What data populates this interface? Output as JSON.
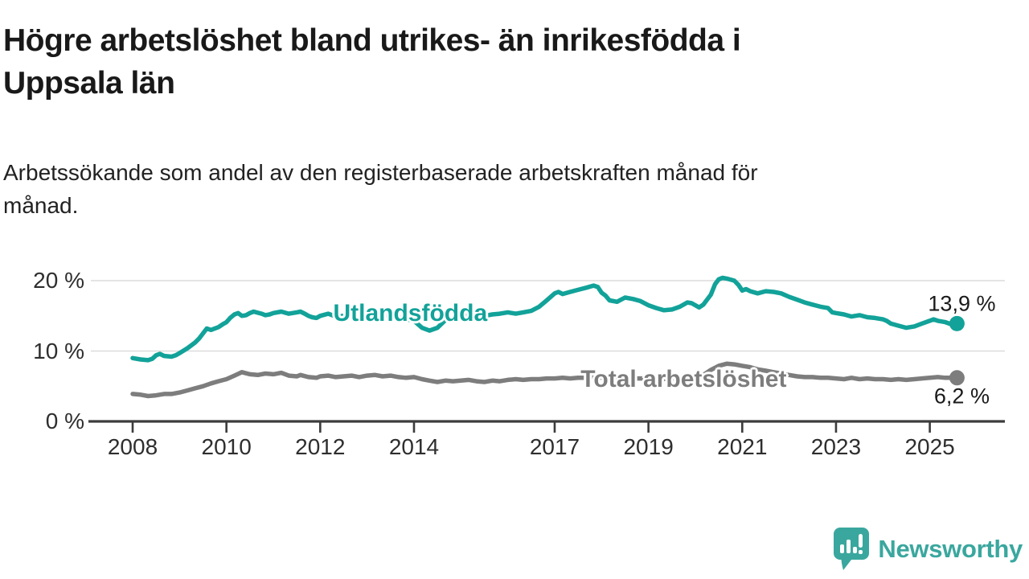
{
  "header": {
    "title_lines": [
      "Högre arbetslöshet bland utrikes- än inrikesfödda i",
      "Uppsala län"
    ],
    "subtitle_lines": [
      "Arbetssökande som andel av den registerbaserade arbetskraften månad för",
      "månad."
    ]
  },
  "chart_data": {
    "type": "line",
    "title": "Högre arbetslöshet bland utrikes- än inrikesfödda i Uppsala län",
    "subtitle": "Arbetssökande som andel av den registerbaserade arbetskraften månad för månad.",
    "xlabel": "",
    "ylabel": "",
    "grid": true,
    "x_range": [
      2008,
      2025.6
    ],
    "ylim": [
      0,
      22
    ],
    "y_ticks": [
      {
        "value": 0,
        "label": "0 %"
      },
      {
        "value": 10,
        "label": "10 %"
      },
      {
        "value": 20,
        "label": "20 %"
      }
    ],
    "x_ticks": [
      {
        "value": 2008,
        "label": "2008"
      },
      {
        "value": 2010,
        "label": "2010"
      },
      {
        "value": 2012,
        "label": "2012"
      },
      {
        "value": 2014,
        "label": "2014"
      },
      {
        "value": 2017,
        "label": "2017"
      },
      {
        "value": 2019,
        "label": "2019"
      },
      {
        "value": 2021,
        "label": "2021"
      },
      {
        "value": 2023,
        "label": "2023"
      },
      {
        "value": 2025,
        "label": "2025"
      }
    ],
    "series": [
      {
        "name": "Utlandsfödda",
        "color": "#12a299",
        "end_value": 13.9,
        "end_label": "13,9 %",
        "end_label_position": "above",
        "label_anchor": {
          "year": 2013.92,
          "pct": 15.3
        },
        "points": [
          [
            2008.0,
            9.0
          ],
          [
            2008.17,
            8.8
          ],
          [
            2008.33,
            8.7
          ],
          [
            2008.42,
            8.9
          ],
          [
            2008.5,
            9.4
          ],
          [
            2008.58,
            9.6
          ],
          [
            2008.67,
            9.3
          ],
          [
            2008.83,
            9.2
          ],
          [
            2008.92,
            9.4
          ],
          [
            2009.0,
            9.7
          ],
          [
            2009.17,
            10.4
          ],
          [
            2009.33,
            11.2
          ],
          [
            2009.42,
            11.8
          ],
          [
            2009.5,
            12.5
          ],
          [
            2009.58,
            13.2
          ],
          [
            2009.67,
            13.0
          ],
          [
            2009.83,
            13.4
          ],
          [
            2009.92,
            13.8
          ],
          [
            2010.0,
            14.1
          ],
          [
            2010.08,
            14.7
          ],
          [
            2010.17,
            15.2
          ],
          [
            2010.25,
            15.4
          ],
          [
            2010.33,
            15.0
          ],
          [
            2010.42,
            15.1
          ],
          [
            2010.5,
            15.4
          ],
          [
            2010.58,
            15.6
          ],
          [
            2010.75,
            15.3
          ],
          [
            2010.83,
            15.1
          ],
          [
            2010.92,
            15.2
          ],
          [
            2011.0,
            15.4
          ],
          [
            2011.17,
            15.6
          ],
          [
            2011.33,
            15.3
          ],
          [
            2011.5,
            15.5
          ],
          [
            2011.58,
            15.6
          ],
          [
            2011.67,
            15.3
          ],
          [
            2011.75,
            15.0
          ],
          [
            2011.83,
            14.8
          ],
          [
            2011.92,
            14.7
          ],
          [
            2012.0,
            15.0
          ],
          [
            2012.17,
            15.3
          ],
          [
            2012.33,
            14.9
          ],
          [
            2012.5,
            15.0
          ],
          [
            2012.67,
            15.3
          ],
          [
            2012.83,
            15.0
          ],
          [
            2013.0,
            15.2
          ],
          [
            2013.17,
            15.3
          ],
          [
            2013.33,
            15.0
          ],
          [
            2013.5,
            15.2
          ],
          [
            2013.67,
            14.8
          ],
          [
            2013.83,
            14.5
          ],
          [
            2014.0,
            14.3
          ],
          [
            2014.17,
            13.3
          ],
          [
            2014.33,
            12.9
          ],
          [
            2014.5,
            13.3
          ],
          [
            2014.67,
            14.4
          ],
          [
            2014.83,
            14.7
          ],
          [
            2015.0,
            14.9
          ],
          [
            2015.17,
            15.1
          ],
          [
            2015.33,
            14.9
          ],
          [
            2015.5,
            15.0
          ],
          [
            2015.67,
            15.2
          ],
          [
            2015.83,
            15.3
          ],
          [
            2016.0,
            15.5
          ],
          [
            2016.17,
            15.3
          ],
          [
            2016.33,
            15.5
          ],
          [
            2016.5,
            15.7
          ],
          [
            2016.67,
            16.3
          ],
          [
            2016.83,
            17.2
          ],
          [
            2017.0,
            18.2
          ],
          [
            2017.08,
            18.4
          ],
          [
            2017.17,
            18.1
          ],
          [
            2017.33,
            18.4
          ],
          [
            2017.5,
            18.7
          ],
          [
            2017.67,
            19.0
          ],
          [
            2017.83,
            19.3
          ],
          [
            2017.92,
            19.1
          ],
          [
            2018.0,
            18.3
          ],
          [
            2018.08,
            17.9
          ],
          [
            2018.17,
            17.2
          ],
          [
            2018.33,
            17.0
          ],
          [
            2018.5,
            17.6
          ],
          [
            2018.67,
            17.4
          ],
          [
            2018.83,
            17.1
          ],
          [
            2019.0,
            16.5
          ],
          [
            2019.17,
            16.1
          ],
          [
            2019.33,
            15.8
          ],
          [
            2019.5,
            15.9
          ],
          [
            2019.67,
            16.3
          ],
          [
            2019.83,
            16.9
          ],
          [
            2019.92,
            16.8
          ],
          [
            2020.0,
            16.5
          ],
          [
            2020.08,
            16.2
          ],
          [
            2020.17,
            16.6
          ],
          [
            2020.33,
            18.0
          ],
          [
            2020.42,
            19.5
          ],
          [
            2020.5,
            20.2
          ],
          [
            2020.58,
            20.4
          ],
          [
            2020.67,
            20.3
          ],
          [
            2020.83,
            20.0
          ],
          [
            2020.92,
            19.4
          ],
          [
            2021.0,
            18.6
          ],
          [
            2021.08,
            18.8
          ],
          [
            2021.17,
            18.5
          ],
          [
            2021.33,
            18.2
          ],
          [
            2021.5,
            18.5
          ],
          [
            2021.67,
            18.4
          ],
          [
            2021.83,
            18.2
          ],
          [
            2022.0,
            17.7
          ],
          [
            2022.17,
            17.3
          ],
          [
            2022.33,
            16.9
          ],
          [
            2022.5,
            16.6
          ],
          [
            2022.67,
            16.3
          ],
          [
            2022.83,
            16.1
          ],
          [
            2022.92,
            15.5
          ],
          [
            2023.0,
            15.4
          ],
          [
            2023.17,
            15.2
          ],
          [
            2023.33,
            14.9
          ],
          [
            2023.5,
            15.1
          ],
          [
            2023.67,
            14.8
          ],
          [
            2023.83,
            14.7
          ],
          [
            2024.0,
            14.5
          ],
          [
            2024.08,
            14.3
          ],
          [
            2024.17,
            13.9
          ],
          [
            2024.33,
            13.6
          ],
          [
            2024.5,
            13.3
          ],
          [
            2024.67,
            13.5
          ],
          [
            2024.83,
            13.9
          ],
          [
            2025.0,
            14.3
          ],
          [
            2025.08,
            14.5
          ],
          [
            2025.17,
            14.3
          ],
          [
            2025.33,
            14.1
          ],
          [
            2025.5,
            13.7
          ],
          [
            2025.58,
            13.9
          ]
        ]
      },
      {
        "name": "Total arbetslöshet",
        "color": "#7d7d7d",
        "end_value": 6.2,
        "end_label": "6,2 %",
        "end_label_position": "below",
        "label_anchor": {
          "year": 2019.75,
          "pct": 5.9
        },
        "points": [
          [
            2008.0,
            3.9
          ],
          [
            2008.17,
            3.8
          ],
          [
            2008.33,
            3.6
          ],
          [
            2008.5,
            3.7
          ],
          [
            2008.67,
            3.9
          ],
          [
            2008.83,
            3.9
          ],
          [
            2009.0,
            4.1
          ],
          [
            2009.17,
            4.4
          ],
          [
            2009.33,
            4.7
          ],
          [
            2009.5,
            5.0
          ],
          [
            2009.67,
            5.4
          ],
          [
            2009.83,
            5.7
          ],
          [
            2010.0,
            6.0
          ],
          [
            2010.17,
            6.5
          ],
          [
            2010.33,
            7.0
          ],
          [
            2010.5,
            6.7
          ],
          [
            2010.67,
            6.6
          ],
          [
            2010.83,
            6.8
          ],
          [
            2011.0,
            6.7
          ],
          [
            2011.17,
            6.9
          ],
          [
            2011.33,
            6.5
          ],
          [
            2011.5,
            6.4
          ],
          [
            2011.58,
            6.6
          ],
          [
            2011.75,
            6.3
          ],
          [
            2011.92,
            6.2
          ],
          [
            2012.0,
            6.4
          ],
          [
            2012.17,
            6.5
          ],
          [
            2012.33,
            6.3
          ],
          [
            2012.5,
            6.4
          ],
          [
            2012.67,
            6.5
          ],
          [
            2012.83,
            6.3
          ],
          [
            2013.0,
            6.5
          ],
          [
            2013.17,
            6.6
          ],
          [
            2013.33,
            6.4
          ],
          [
            2013.5,
            6.5
          ],
          [
            2013.67,
            6.3
          ],
          [
            2013.83,
            6.2
          ],
          [
            2014.0,
            6.3
          ],
          [
            2014.17,
            6.0
          ],
          [
            2014.33,
            5.8
          ],
          [
            2014.5,
            5.6
          ],
          [
            2014.67,
            5.8
          ],
          [
            2014.83,
            5.7
          ],
          [
            2015.0,
            5.8
          ],
          [
            2015.17,
            5.9
          ],
          [
            2015.33,
            5.7
          ],
          [
            2015.5,
            5.6
          ],
          [
            2015.67,
            5.8
          ],
          [
            2015.83,
            5.7
          ],
          [
            2016.0,
            5.9
          ],
          [
            2016.17,
            6.0
          ],
          [
            2016.33,
            5.9
          ],
          [
            2016.5,
            6.0
          ],
          [
            2016.67,
            6.0
          ],
          [
            2016.83,
            6.1
          ],
          [
            2017.0,
            6.1
          ],
          [
            2017.17,
            6.2
          ],
          [
            2017.33,
            6.1
          ],
          [
            2017.5,
            6.2
          ],
          [
            2017.67,
            6.2
          ],
          [
            2017.83,
            6.3
          ],
          [
            2018.0,
            6.2
          ],
          [
            2018.25,
            6.1
          ],
          [
            2018.5,
            6.2
          ],
          [
            2018.75,
            6.1
          ],
          [
            2019.0,
            6.1
          ],
          [
            2019.25,
            6.0
          ],
          [
            2019.5,
            6.1
          ],
          [
            2019.75,
            6.2
          ],
          [
            2020.0,
            6.3
          ],
          [
            2020.17,
            6.6
          ],
          [
            2020.33,
            7.3
          ],
          [
            2020.5,
            7.9
          ],
          [
            2020.67,
            8.2
          ],
          [
            2020.83,
            8.1
          ],
          [
            2021.0,
            7.9
          ],
          [
            2021.17,
            7.7
          ],
          [
            2021.33,
            7.4
          ],
          [
            2021.5,
            7.2
          ],
          [
            2021.67,
            7.0
          ],
          [
            2021.83,
            6.8
          ],
          [
            2022.0,
            6.6
          ],
          [
            2022.17,
            6.4
          ],
          [
            2022.33,
            6.3
          ],
          [
            2022.5,
            6.3
          ],
          [
            2022.67,
            6.2
          ],
          [
            2022.83,
            6.2
          ],
          [
            2023.0,
            6.1
          ],
          [
            2023.17,
            6.0
          ],
          [
            2023.33,
            6.2
          ],
          [
            2023.5,
            6.0
          ],
          [
            2023.67,
            6.1
          ],
          [
            2023.83,
            6.0
          ],
          [
            2024.0,
            6.0
          ],
          [
            2024.17,
            5.9
          ],
          [
            2024.33,
            6.0
          ],
          [
            2024.5,
            5.9
          ],
          [
            2024.67,
            6.0
          ],
          [
            2024.83,
            6.1
          ],
          [
            2025.0,
            6.2
          ],
          [
            2025.17,
            6.3
          ],
          [
            2025.33,
            6.2
          ],
          [
            2025.5,
            6.2
          ],
          [
            2025.58,
            6.2
          ]
        ]
      }
    ],
    "legend_position": "inline-labels"
  },
  "footer": {
    "brand": "Newsworthy",
    "brand_color": "#3aa79e"
  }
}
